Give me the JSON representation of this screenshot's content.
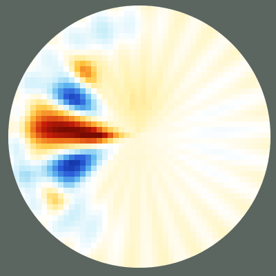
{
  "colors": {
    "background": "#5c6660",
    "colormap": [
      "#08208c",
      "#2a5cd8",
      "#5fb8ee",
      "#c8eefa",
      "#ffffff",
      "#fff2b0",
      "#ffc640",
      "#f0781e",
      "#c81e0a",
      "#7a0c04"
    ]
  },
  "chart_data": {
    "type": "heatmap",
    "projection": "polar-disk",
    "title": "",
    "xlabel": "",
    "ylabel": "",
    "legend": "none",
    "grid": false,
    "colorbar": false,
    "value_range": [
      -1,
      1
    ],
    "features": [
      {
        "name": "hot-band",
        "azimuth_deg": 186,
        "r": 0.58,
        "amplitude": 1.0,
        "sigma_az_deg": 11,
        "sigma_r": 0.24
      },
      {
        "name": "hot-band-tip",
        "azimuth_deg": 180,
        "r": 0.32,
        "amplitude": 0.55,
        "sigma_az_deg": 6,
        "sigma_r": 0.1
      },
      {
        "name": "cold-upper-lobe",
        "azimuth_deg": 210,
        "r": 0.58,
        "amplitude": -0.95,
        "sigma_az_deg": 9,
        "sigma_r": 0.15
      },
      {
        "name": "cold-lower-lobe",
        "azimuth_deg": 157,
        "r": 0.55,
        "amplitude": -0.95,
        "sigma_az_deg": 10,
        "sigma_r": 0.17
      },
      {
        "name": "warm-upper-spot",
        "azimuth_deg": 230,
        "r": 0.65,
        "amplitude": 0.55,
        "sigma_az_deg": 6,
        "sigma_r": 0.09
      },
      {
        "name": "warm-lower-spot",
        "azimuth_deg": 145,
        "r": 0.8,
        "amplitude": 0.6,
        "sigma_az_deg": 6,
        "sigma_r": 0.07
      },
      {
        "name": "cyan-rim-left",
        "azimuth_deg": 180,
        "r": 0.93,
        "amplitude": -0.4,
        "sigma_az_deg": 25,
        "sigma_r": 0.07
      },
      {
        "name": "cyan-rim-top",
        "azimuth_deg": 250,
        "r": 0.85,
        "amplitude": -0.28,
        "sigma_az_deg": 15,
        "sigma_r": 0.1
      },
      {
        "name": "cyan-rim-bottom",
        "azimuth_deg": 128,
        "r": 0.78,
        "amplitude": -0.28,
        "sigma_az_deg": 14,
        "sigma_r": 0.12
      },
      {
        "name": "right-faint-blue",
        "azimuth_deg": 0,
        "r": 0.55,
        "amplitude": -0.12,
        "sigma_az_deg": 40,
        "sigma_r": 0.3
      },
      {
        "name": "centre-faint-yellow",
        "azimuth_deg": 270,
        "r": 0.25,
        "amplitude": 0.15,
        "sigma_az_deg": 30,
        "sigma_r": 0.2
      }
    ]
  }
}
